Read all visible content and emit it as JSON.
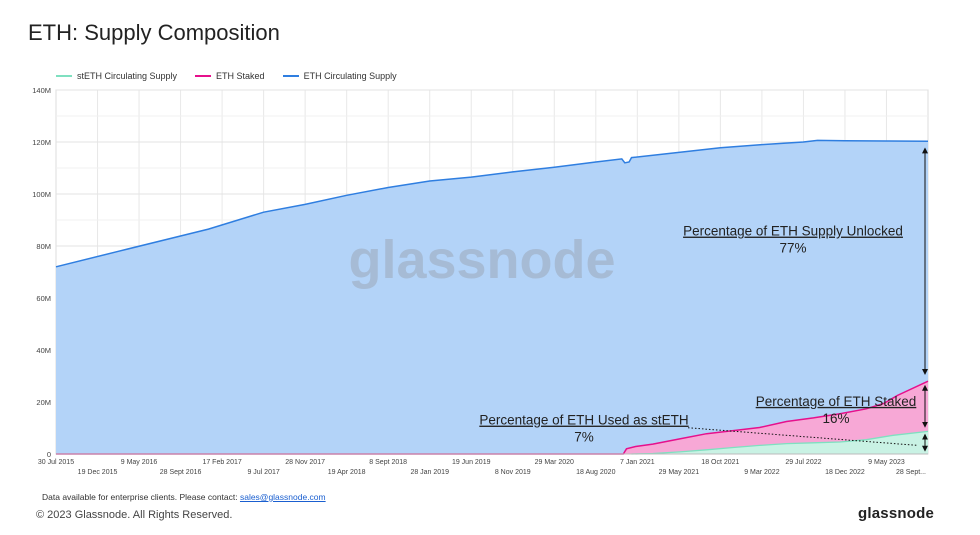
{
  "header": {
    "title": "ETH: Supply Composition"
  },
  "footer": {
    "note_prefix": "Data available for enterprise clients. Please contact: ",
    "email": "sales@glassnode.com",
    "copyright": "© 2023 Glassnode. All Rights Reserved.",
    "brand": "glassnode"
  },
  "watermark": "glassnode",
  "colors": {
    "steth": "#7fe0c0",
    "staked": "#e6108c",
    "circulating": "#2f7ee0",
    "circulating_fill": "#b3d3f8",
    "staked_fill": "#f7a8d6",
    "steth_fill": "#c9f2e4"
  },
  "chart_data": {
    "type": "area",
    "x_range": [
      "2015-07-30",
      "2023-09-28"
    ],
    "ylim": [
      0,
      140
    ],
    "yticks": [
      {
        "value": 0,
        "label": "0"
      },
      {
        "value": 20,
        "label": "20M"
      },
      {
        "value": 40,
        "label": "40M"
      },
      {
        "value": 60,
        "label": "60M"
      },
      {
        "value": 80,
        "label": "80M"
      },
      {
        "value": 100,
        "label": "100M"
      },
      {
        "value": 120,
        "label": "120M"
      },
      {
        "value": 140,
        "label": "140M"
      }
    ],
    "xticks_top": [
      {
        "date": "2015-07-30",
        "label": "30 Jul 2015"
      },
      {
        "date": "2016-05-09",
        "label": "9 May 2016"
      },
      {
        "date": "2017-02-17",
        "label": "17 Feb 2017"
      },
      {
        "date": "2017-11-28",
        "label": "28 Nov 2017"
      },
      {
        "date": "2018-09-08",
        "label": "8 Sept 2018"
      },
      {
        "date": "2019-06-19",
        "label": "19 Jun 2019"
      },
      {
        "date": "2020-03-29",
        "label": "29 Mar 2020"
      },
      {
        "date": "2021-01-07",
        "label": "7 Jan 2021"
      },
      {
        "date": "2021-10-18",
        "label": "18 Oct 2021"
      },
      {
        "date": "2022-07-29",
        "label": "29 Jul 2022"
      },
      {
        "date": "2023-05-09",
        "label": "9 May 2023"
      }
    ],
    "xticks_bottom": [
      {
        "date": "2015-12-19",
        "label": "19 Dec 2015"
      },
      {
        "date": "2016-09-28",
        "label": "28 Sept 2016"
      },
      {
        "date": "2017-07-09",
        "label": "9 Jul 2017"
      },
      {
        "date": "2018-04-19",
        "label": "19 Apr 2018"
      },
      {
        "date": "2019-01-28",
        "label": "28 Jan 2019"
      },
      {
        "date": "2019-11-08",
        "label": "8 Nov 2019"
      },
      {
        "date": "2020-08-18",
        "label": "18 Aug 2020"
      },
      {
        "date": "2021-05-29",
        "label": "29 May 2021"
      },
      {
        "date": "2022-03-09",
        "label": "9 Mar 2022"
      },
      {
        "date": "2022-12-18",
        "label": "18 Dec 2022"
      },
      {
        "date": "2023-09-28",
        "label": "28 Sept..."
      }
    ],
    "series": [
      {
        "name": "stETH Circulating Supply",
        "points": [
          [
            "2020-12-18",
            0
          ],
          [
            "2021-03-01",
            0.2
          ],
          [
            "2021-06-01",
            0.8
          ],
          [
            "2021-09-01",
            1.6
          ],
          [
            "2021-12-01",
            2.5
          ],
          [
            "2022-03-01",
            3.3
          ],
          [
            "2022-06-01",
            4.0
          ],
          [
            "2022-09-01",
            4.3
          ],
          [
            "2022-12-01",
            4.6
          ],
          [
            "2023-03-01",
            5.5
          ],
          [
            "2023-06-01",
            7.2
          ],
          [
            "2023-09-28",
            8.7
          ]
        ]
      },
      {
        "name": "ETH Staked",
        "points": [
          [
            "2015-07-30",
            0
          ],
          [
            "2020-11-20",
            0
          ],
          [
            "2020-12-01",
            2.0
          ],
          [
            "2021-01-01",
            2.9
          ],
          [
            "2021-03-01",
            3.8
          ],
          [
            "2021-06-01",
            5.8
          ],
          [
            "2021-09-01",
            7.8
          ],
          [
            "2021-12-01",
            9.0
          ],
          [
            "2022-03-01",
            10.2
          ],
          [
            "2022-06-01",
            12.5
          ],
          [
            "2022-09-01",
            13.9
          ],
          [
            "2022-12-01",
            15.5
          ],
          [
            "2023-03-01",
            17.4
          ],
          [
            "2023-05-01",
            19.5
          ],
          [
            "2023-06-15",
            22.5
          ],
          [
            "2023-09-28",
            28.0
          ]
        ]
      },
      {
        "name": "ETH Circulating Supply",
        "points": [
          [
            "2015-07-30",
            72.0
          ],
          [
            "2016-03-01",
            78.0
          ],
          [
            "2017-01-01",
            86.5
          ],
          [
            "2017-07-09",
            93.0
          ],
          [
            "2017-11-28",
            96.0
          ],
          [
            "2018-04-19",
            99.5
          ],
          [
            "2018-09-08",
            102.5
          ],
          [
            "2019-01-28",
            105.0
          ],
          [
            "2019-06-19",
            106.5
          ],
          [
            "2019-11-08",
            108.5
          ],
          [
            "2020-03-29",
            110.3
          ],
          [
            "2020-08-18",
            112.3
          ],
          [
            "2020-11-15",
            113.5
          ],
          [
            "2020-11-25",
            112.0
          ],
          [
            "2020-12-10",
            112.3
          ],
          [
            "2020-12-18",
            114.0
          ],
          [
            "2021-05-29",
            116.0
          ],
          [
            "2021-10-18",
            117.8
          ],
          [
            "2022-03-09",
            119.0
          ],
          [
            "2022-07-29",
            120.0
          ],
          [
            "2022-09-15",
            120.6
          ],
          [
            "2022-12-18",
            120.5
          ],
          [
            "2023-05-09",
            120.4
          ],
          [
            "2023-09-28",
            120.3
          ]
        ]
      }
    ],
    "annotations": [
      {
        "label": "Percentage of ETH Supply Unlocked",
        "value": "77%"
      },
      {
        "label": "Percentage of ETH Staked",
        "value": "16%"
      },
      {
        "label": "Percentage of ETH Used as stETH",
        "value": "7%"
      }
    ]
  }
}
